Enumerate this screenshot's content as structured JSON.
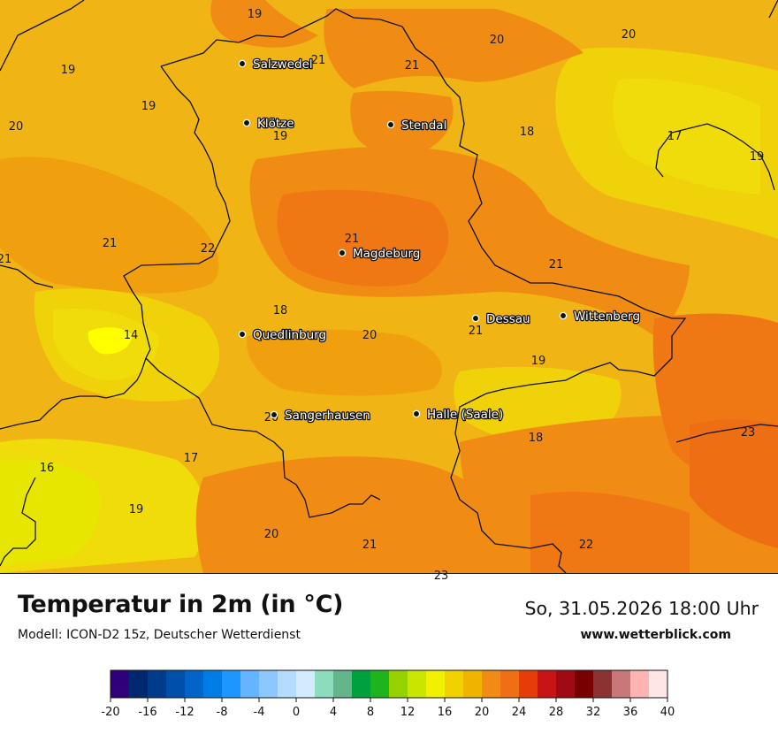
{
  "header": {
    "title": "Temperatur in 2m (in °C)",
    "model": "Modell: ICON-D2 15z, Deutscher Wetterdienst",
    "datetime": "So, 31.05.2026 18:00 Uhr",
    "website": "www.wetterblick.com"
  },
  "cities": [
    {
      "name": "Salzwedel"
    },
    {
      "name": "Klötze"
    },
    {
      "name": "Stendal"
    },
    {
      "name": "Magdeburg"
    },
    {
      "name": "Quedlinburg"
    },
    {
      "name": "Dessau"
    },
    {
      "name": "Wittenberg"
    },
    {
      "name": "Sangerhausen"
    },
    {
      "name": "Halle (Saale)"
    }
  ],
  "temperature_labels": [
    "19",
    "19",
    "21",
    "21",
    "20",
    "20",
    "19",
    "20",
    "19",
    "18",
    "17",
    "19",
    "21",
    "21",
    "22",
    "21",
    "21",
    "18",
    "14",
    "20",
    "21",
    "19",
    "20",
    "18",
    "23",
    "16",
    "17",
    "19",
    "20",
    "21",
    "22",
    "23"
  ],
  "legend": {
    "unit": "°C",
    "ticks": [
      "-20",
      "-16",
      "-12",
      "-8",
      "-4",
      "0",
      "4",
      "8",
      "12",
      "16",
      "20",
      "24",
      "28",
      "32",
      "36",
      "40"
    ],
    "colors": [
      "#30007a",
      "#00286e",
      "#003c8c",
      "#0050aa",
      "#0064c8",
      "#007ce6",
      "#1e96ff",
      "#64b4ff",
      "#8cc8ff",
      "#b4dcff",
      "#d2ebff",
      "#8cdcbe",
      "#64b48c",
      "#00a03c",
      "#1eb41e",
      "#96d200",
      "#c8e600",
      "#f0f000",
      "#f0d200",
      "#f0b400",
      "#f08c14",
      "#f06e14",
      "#e63c0a",
      "#c81414",
      "#a00a14",
      "#780000",
      "#8c3232",
      "#c87878",
      "#ffb4b4",
      "#ffe6e6"
    ]
  },
  "palette": {
    "t14": "#ffff00",
    "t16": "#e6e600",
    "t17": "#f0dc0a",
    "t18": "#f0d20a",
    "t19": "#f0b414",
    "t20": "#f0a00f",
    "t21": "#f08c14",
    "t22": "#f07814",
    "t23": "#ee6e14"
  }
}
